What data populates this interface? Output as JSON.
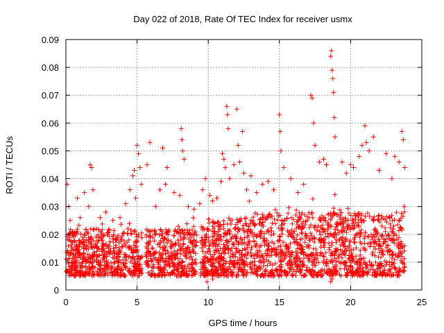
{
  "chart_data": {
    "type": "scatter",
    "title": "Day 022 of 2018, Rate Of TEC Index for receiver usmx",
    "xlabel": "GPS time / hours",
    "ylabel": "ROTI / TECUs",
    "xlim": [
      0,
      25
    ],
    "ylim": [
      0,
      0.09
    ],
    "x_ticks": [
      0,
      5,
      10,
      15,
      20,
      25
    ],
    "x_tick_labels": [
      "0",
      "5",
      "10",
      "15",
      "20",
      "25"
    ],
    "y_ticks": [
      0,
      0.01,
      0.02,
      0.03,
      0.04,
      0.05,
      0.06,
      0.07,
      0.08,
      0.09
    ],
    "y_tick_labels": [
      "0",
      "0.01",
      "0.02",
      "0.03",
      "0.04",
      "0.05",
      "0.06",
      "0.07",
      "0.08",
      "0.09"
    ],
    "grid": true,
    "marker": "+",
    "series": [
      {
        "name": "ROTI",
        "color": "#ff0000",
        "points": [
          [
            0.1,
            0.038
          ],
          [
            0.2,
            0.03
          ],
          [
            0.3,
            0.025
          ],
          [
            0.5,
            0.02
          ],
          [
            0.8,
            0.033
          ],
          [
            1.0,
            0.026
          ],
          [
            1.3,
            0.035
          ],
          [
            1.6,
            0.03
          ],
          [
            1.7,
            0.045
          ],
          [
            1.8,
            0.044
          ],
          [
            1.9,
            0.036
          ],
          [
            2.4,
            0.026
          ],
          [
            2.8,
            0.028
          ],
          [
            3.3,
            0.025
          ],
          [
            3.8,
            0.026
          ],
          [
            4.2,
            0.031
          ],
          [
            4.5,
            0.036
          ],
          [
            4.7,
            0.041
          ],
          [
            4.8,
            0.043
          ],
          [
            4.9,
            0.033
          ],
          [
            5.0,
            0.052
          ],
          [
            5.1,
            0.049
          ],
          [
            5.2,
            0.044
          ],
          [
            5.3,
            0.038
          ],
          [
            5.7,
            0.045
          ],
          [
            5.9,
            0.053
          ],
          [
            6.3,
            0.03
          ],
          [
            6.6,
            0.036
          ],
          [
            6.8,
            0.051
          ],
          [
            7.0,
            0.038
          ],
          [
            7.1,
            0.044
          ],
          [
            7.6,
            0.035
          ],
          [
            8.0,
            0.034
          ],
          [
            8.1,
            0.058
          ],
          [
            8.15,
            0.054
          ],
          [
            8.2,
            0.05
          ],
          [
            8.3,
            0.047
          ],
          [
            8.6,
            0.03
          ],
          [
            9.0,
            0.029
          ],
          [
            9.4,
            0.031
          ],
          [
            9.6,
            0.036
          ],
          [
            9.8,
            0.04
          ],
          [
            10.1,
            0.034
          ],
          [
            10.3,
            0.032
          ],
          [
            10.6,
            0.033
          ],
          [
            10.9,
            0.039
          ],
          [
            11.0,
            0.049
          ],
          [
            11.1,
            0.047
          ],
          [
            11.2,
            0.044
          ],
          [
            11.3,
            0.066
          ],
          [
            11.35,
            0.063
          ],
          [
            11.4,
            0.058
          ],
          [
            11.5,
            0.04
          ],
          [
            11.8,
            0.045
          ],
          [
            12.0,
            0.065
          ],
          [
            12.1,
            0.052
          ],
          [
            12.2,
            0.046
          ],
          [
            12.4,
            0.057
          ],
          [
            12.5,
            0.042
          ],
          [
            12.7,
            0.036
          ],
          [
            13.0,
            0.041
          ],
          [
            13.4,
            0.035
          ],
          [
            13.8,
            0.038
          ],
          [
            14.2,
            0.039
          ],
          [
            14.6,
            0.036
          ],
          [
            15.0,
            0.063
          ],
          [
            15.05,
            0.057
          ],
          [
            15.1,
            0.05
          ],
          [
            15.3,
            0.044
          ],
          [
            15.8,
            0.04
          ],
          [
            16.3,
            0.035
          ],
          [
            16.7,
            0.038
          ],
          [
            17.2,
            0.07
          ],
          [
            17.3,
            0.069
          ],
          [
            17.4,
            0.06
          ],
          [
            17.5,
            0.052
          ],
          [
            17.8,
            0.046
          ],
          [
            18.1,
            0.047
          ],
          [
            18.3,
            0.045
          ],
          [
            18.6,
            0.084
          ],
          [
            18.65,
            0.086
          ],
          [
            18.7,
            0.079
          ],
          [
            18.75,
            0.076
          ],
          [
            18.8,
            0.071
          ],
          [
            18.85,
            0.062
          ],
          [
            18.9,
            0.055
          ],
          [
            19.4,
            0.046
          ],
          [
            19.7,
            0.042
          ],
          [
            20.0,
            0.045
          ],
          [
            20.2,
            0.044
          ],
          [
            20.6,
            0.048
          ],
          [
            20.8,
            0.052
          ],
          [
            21.0,
            0.059
          ],
          [
            21.1,
            0.053
          ],
          [
            21.3,
            0.05
          ],
          [
            21.6,
            0.055
          ],
          [
            22.0,
            0.043
          ],
          [
            22.5,
            0.049
          ],
          [
            22.9,
            0.04
          ],
          [
            23.1,
            0.048
          ],
          [
            23.4,
            0.046
          ],
          [
            23.6,
            0.057
          ],
          [
            23.7,
            0.054
          ],
          [
            23.8,
            0.044
          ],
          [
            18.6,
            0.003
          ],
          [
            18.7,
            0.004
          ],
          [
            9.9,
            0.003
          ],
          [
            10.3,
            0.004
          ]
        ],
        "dense_band": {
          "description": "dense cloud of points",
          "x_range": [
            0,
            23.8
          ],
          "y_min": 0.003,
          "y_max_typical": 0.03
        }
      }
    ]
  }
}
